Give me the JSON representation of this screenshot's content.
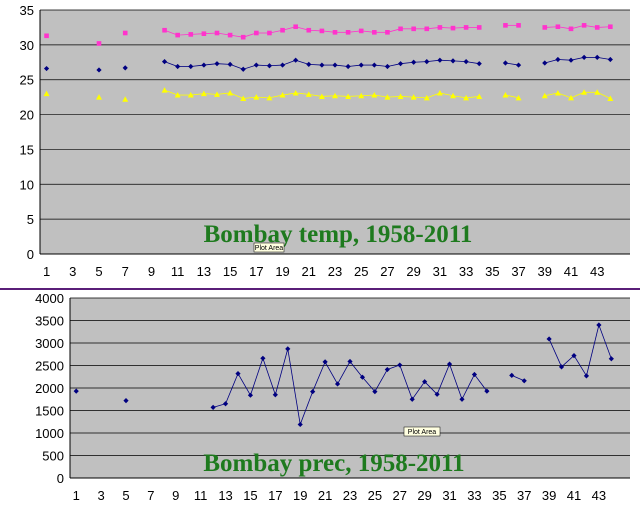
{
  "colors": {
    "plot_bg": "#c0c0c0",
    "grid": "#000000",
    "tmax": "#ff33cc",
    "tmean": "#000080",
    "tmin": "#ffff00",
    "prec": "#000080",
    "title": "#1e7a1e",
    "divider": "#5a1e78"
  },
  "chart_data": [
    {
      "type": "line",
      "title": "Bombay temp, 1958-2011",
      "tooltip": "Plot Area",
      "ylim": [
        0,
        35
      ],
      "yticks": [
        0,
        5,
        10,
        15,
        20,
        25,
        30,
        35
      ],
      "xlim": [
        0.5,
        45.5
      ],
      "xticks": [
        1,
        3,
        5,
        7,
        9,
        11,
        13,
        15,
        17,
        19,
        21,
        23,
        25,
        27,
        29,
        31,
        33,
        35,
        37,
        39,
        41,
        43
      ],
      "grid": true,
      "legend": "none",
      "series": [
        {
          "key": "tmax",
          "marker": "square",
          "values": [
            31.3,
            null,
            null,
            null,
            30.2,
            null,
            31.7,
            null,
            null,
            32.1,
            31.4,
            31.5,
            31.6,
            31.7,
            31.4,
            31.1,
            31.7,
            31.7,
            32.1,
            32.6,
            32.1,
            32.0,
            31.8,
            31.8,
            32.0,
            31.8,
            31.8,
            32.3,
            32.3,
            32.3,
            32.5,
            32.4,
            32.5,
            32.5,
            null,
            32.8,
            32.8,
            null,
            32.5,
            32.6,
            32.3,
            32.8,
            32.5,
            32.6
          ]
        },
        {
          "key": "tmean",
          "marker": "diamond",
          "values": [
            26.6,
            null,
            null,
            null,
            26.4,
            null,
            26.7,
            null,
            null,
            27.6,
            26.9,
            26.9,
            27.1,
            27.3,
            27.2,
            26.5,
            27.1,
            27.0,
            27.1,
            27.8,
            27.2,
            27.1,
            27.1,
            26.9,
            27.1,
            27.1,
            26.9,
            27.3,
            27.5,
            27.6,
            27.8,
            27.7,
            27.6,
            27.3,
            null,
            27.4,
            27.1,
            null,
            27.4,
            27.9,
            27.8,
            28.2,
            28.2,
            27.9
          ]
        },
        {
          "key": "tmin",
          "marker": "triangle",
          "values": [
            23.0,
            null,
            null,
            null,
            22.5,
            null,
            22.2,
            null,
            null,
            23.5,
            22.8,
            22.8,
            23.0,
            22.9,
            23.1,
            22.3,
            22.5,
            22.4,
            22.8,
            23.1,
            22.9,
            22.6,
            22.7,
            22.6,
            22.7,
            22.8,
            22.5,
            22.6,
            22.5,
            22.4,
            23.1,
            22.7,
            22.4,
            22.6,
            null,
            22.8,
            22.4,
            null,
            22.7,
            23.1,
            22.4,
            23.2,
            23.2,
            22.3
          ]
        }
      ]
    },
    {
      "type": "line",
      "title": "Bombay prec, 1958-2011",
      "tooltip": "Plot Area",
      "ylim": [
        0,
        4000
      ],
      "yticks": [
        0,
        500,
        1000,
        1500,
        2000,
        2500,
        3000,
        3500,
        4000
      ],
      "xlim": [
        0.5,
        45.5
      ],
      "xticks": [
        1,
        3,
        5,
        7,
        9,
        11,
        13,
        15,
        17,
        19,
        21,
        23,
        25,
        27,
        29,
        31,
        33,
        35,
        37,
        39,
        41,
        43
      ],
      "grid": true,
      "legend": "none",
      "series": [
        {
          "key": "prec",
          "marker": "diamond",
          "values": [
            1930,
            null,
            null,
            null,
            1720,
            null,
            null,
            null,
            null,
            null,
            null,
            1570,
            1650,
            2320,
            1840,
            2660,
            1850,
            2870,
            1190,
            1920,
            2580,
            2090,
            2590,
            2240,
            1920,
            2410,
            2510,
            1750,
            2140,
            1860,
            2530,
            1750,
            2300,
            1930,
            null,
            2280,
            2160,
            null,
            3090,
            2470,
            2720,
            2270,
            3400,
            2650
          ]
        }
      ]
    }
  ]
}
